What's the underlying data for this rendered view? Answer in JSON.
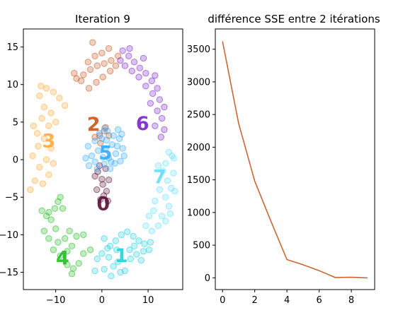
{
  "chart_data": [
    {
      "type": "scatter",
      "title": "Iteration 9",
      "xlabel": "",
      "ylabel": "",
      "xlim": [
        -17,
        17.5
      ],
      "ylim": [
        -17.3,
        17.4
      ],
      "xticks": [
        "−10",
        "0",
        "10"
      ],
      "xtick_values": [
        -10,
        0,
        10
      ],
      "yticks": [
        "−15",
        "−10",
        "−5",
        "0",
        "5",
        "10",
        "15"
      ],
      "ytick_values": [
        -15,
        -10,
        -5,
        0,
        5,
        10,
        15
      ],
      "grid": false,
      "clusters": [
        {
          "label": "0",
          "color": "#5a1033",
          "label_pos": [
            0.3,
            -5.8
          ],
          "points": [
            [
              -0.5,
              -0.8
            ],
            [
              0.8,
              -1.2
            ],
            [
              -1.5,
              -2.2
            ],
            [
              1.5,
              -2.7
            ],
            [
              0.2,
              -3.3
            ],
            [
              -1.1,
              -4.0
            ],
            [
              1.0,
              -4.2
            ],
            [
              0.4,
              -4.8
            ],
            [
              -0.3,
              -5.3
            ],
            [
              1.3,
              -5.5
            ],
            [
              -0.9,
              -1.6
            ],
            [
              0.0,
              -2.6
            ]
          ]
        },
        {
          "label": "1",
          "color": "#22d0dd",
          "label_pos": [
            4.2,
            -12.7
          ],
          "points": [
            [
              0.5,
              -10.5
            ],
            [
              1.8,
              -11.5
            ],
            [
              3.0,
              -10.8
            ],
            [
              4.2,
              -10.0
            ],
            [
              5.5,
              -9.6
            ],
            [
              6.8,
              -10.2
            ],
            [
              8.0,
              -10.8
            ],
            [
              9.2,
              -11.2
            ],
            [
              10.5,
              -11.0
            ],
            [
              -1.0,
              -13.2
            ],
            [
              0.0,
              -12.5
            ],
            [
              1.5,
              -13.0
            ],
            [
              2.5,
              -14.2
            ],
            [
              3.5,
              -13.6
            ],
            [
              5.0,
              -14.8
            ],
            [
              6.2,
              -13.2
            ],
            [
              7.5,
              -12.6
            ],
            [
              8.5,
              -13.4
            ],
            [
              -1.5,
              -14.8
            ],
            [
              0.5,
              -14.6
            ],
            [
              2.0,
              -15.5
            ],
            [
              4.0,
              -15.0
            ],
            [
              6.0,
              -12.0
            ],
            [
              7.0,
              -11.5
            ],
            [
              9.0,
              -12.2
            ],
            [
              10.2,
              -12.0
            ],
            [
              3.2,
              -12.0
            ],
            [
              1.2,
              -11.8
            ]
          ]
        },
        {
          "label": "2",
          "color": "#c9541b",
          "label_pos": [
            -1.8,
            4.8
          ],
          "points": [
            [
              -5.5,
              10.8
            ],
            [
              -4.0,
              11.3
            ],
            [
              -2.5,
              12.0
            ],
            [
              -1.0,
              12.5
            ],
            [
              0.5,
              12.8
            ],
            [
              2.0,
              13.2
            ],
            [
              3.5,
              13.8
            ],
            [
              -3.0,
              13.0
            ],
            [
              -1.5,
              13.8
            ],
            [
              0.0,
              14.2
            ],
            [
              1.5,
              14.8
            ],
            [
              -2.0,
              15.6
            ],
            [
              -6.0,
              11.5
            ],
            [
              -4.5,
              10.5
            ],
            [
              -2.8,
              9.5
            ],
            [
              -1.2,
              10.3
            ],
            [
              0.2,
              11.0
            ],
            [
              1.8,
              11.8
            ],
            [
              3.0,
              12.5
            ],
            [
              -0.5,
              3.2
            ],
            [
              0.5,
              3.8
            ],
            [
              -1.5,
              3.0
            ],
            [
              0.8,
              4.3
            ],
            [
              1.5,
              3.2
            ],
            [
              -0.3,
              2.2
            ]
          ]
        },
        {
          "label": "3",
          "color": "#ffaa33",
          "label_pos": [
            -11.5,
            2.6
          ],
          "points": [
            [
              -13.5,
              8.5
            ],
            [
              -12.0,
              9.5
            ],
            [
              -10.5,
              9.0
            ],
            [
              -9.2,
              8.2
            ],
            [
              -8.0,
              7.2
            ],
            [
              -12.5,
              7.0
            ],
            [
              -11.0,
              6.2
            ],
            [
              -10.0,
              5.0
            ],
            [
              -13.0,
              5.5
            ],
            [
              -11.5,
              4.5
            ],
            [
              -14.0,
              3.5
            ],
            [
              -12.5,
              2.8
            ],
            [
              -11.0,
              1.5
            ],
            [
              -13.8,
              1.8
            ],
            [
              -15.0,
              0.5
            ],
            [
              -12.0,
              0.0
            ],
            [
              -10.5,
              -0.5
            ],
            [
              -13.5,
              -1.0
            ],
            [
              -11.5,
              -2.0
            ],
            [
              -14.5,
              -2.8
            ],
            [
              -12.8,
              -3.2
            ],
            [
              -15.5,
              -4.0
            ],
            [
              -14.8,
              4.5
            ],
            [
              -13.2,
              9.8
            ]
          ]
        },
        {
          "label": "4",
          "color": "#22bb22",
          "label_pos": [
            -8.5,
            -13.0
          ],
          "points": [
            [
              -13.0,
              -6.8
            ],
            [
              -12.0,
              -7.5
            ],
            [
              -11.0,
              -8.0
            ],
            [
              -10.2,
              -6.5
            ],
            [
              -9.5,
              -5.6
            ],
            [
              -8.5,
              -6.5
            ],
            [
              -12.5,
              -9.5
            ],
            [
              -11.5,
              -10.5
            ],
            [
              -10.0,
              -9.2
            ],
            [
              -9.5,
              -11.0
            ],
            [
              -8.0,
              -10.5
            ],
            [
              -7.0,
              -9.5
            ],
            [
              -10.5,
              -12.0
            ],
            [
              -9.0,
              -12.8
            ],
            [
              -7.5,
              -12.2
            ],
            [
              -6.5,
              -11.5
            ],
            [
              -5.5,
              -10.2
            ],
            [
              -4.0,
              -10.0
            ],
            [
              -7.5,
              -14.0
            ],
            [
              -6.2,
              -14.5
            ],
            [
              -5.0,
              -13.8
            ],
            [
              -4.0,
              -12.5
            ],
            [
              -2.5,
              -12.0
            ],
            [
              -6.5,
              -15.2
            ],
            [
              -11.5,
              -7.0
            ],
            [
              -9.0,
              -5.0
            ]
          ]
        },
        {
          "label": "5",
          "color": "#33aaff",
          "label_pos": [
            0.8,
            1.0
          ],
          "points": [
            [
              -3.0,
              1.8
            ],
            [
              -2.2,
              0.5
            ],
            [
              -1.5,
              2.5
            ],
            [
              -0.8,
              1.2
            ],
            [
              0.0,
              2.8
            ],
            [
              0.8,
              1.5
            ],
            [
              1.5,
              0.2
            ],
            [
              2.2,
              2.0
            ],
            [
              3.0,
              0.8
            ],
            [
              3.8,
              2.8
            ],
            [
              4.5,
              1.5
            ],
            [
              -2.8,
              -0.8
            ],
            [
              -1.5,
              -0.3
            ],
            [
              0.5,
              -0.6
            ],
            [
              1.8,
              -1.2
            ],
            [
              2.8,
              -0.5
            ],
            [
              4.0,
              -0.2
            ],
            [
              4.8,
              0.5
            ],
            [
              -0.5,
              3.5
            ],
            [
              1.2,
              3.8
            ],
            [
              2.5,
              3.2
            ],
            [
              3.5,
              4.0
            ],
            [
              -3.5,
              0.2
            ],
            [
              0.2,
              0.3
            ],
            [
              1.0,
              2.6
            ],
            [
              2.0,
              -0.3
            ],
            [
              3.3,
              1.8
            ],
            [
              4.3,
              3.4
            ],
            [
              -1.0,
              -1.2
            ],
            [
              0.6,
              4.2
            ]
          ]
        },
        {
          "label": "6",
          "color": "#7a22cc",
          "label_pos": [
            8.8,
            4.9
          ],
          "points": [
            [
              4.5,
              14.5
            ],
            [
              5.8,
              13.8
            ],
            [
              7.0,
              13.0
            ],
            [
              8.2,
              12.2
            ],
            [
              9.5,
              11.5
            ],
            [
              10.8,
              10.5
            ],
            [
              12.0,
              9.5
            ],
            [
              5.0,
              12.5
            ],
            [
              6.5,
              11.8
            ],
            [
              8.0,
              11.0
            ],
            [
              9.5,
              9.8
            ],
            [
              11.0,
              8.8
            ],
            [
              12.5,
              8.0
            ],
            [
              13.5,
              7.0
            ],
            [
              10.5,
              7.5
            ],
            [
              12.0,
              6.5
            ],
            [
              13.0,
              5.5
            ],
            [
              11.5,
              4.5
            ],
            [
              13.5,
              4.0
            ],
            [
              12.8,
              3.0
            ],
            [
              6.0,
              14.8
            ],
            [
              4.0,
              13.2
            ],
            [
              9.0,
              13.5
            ],
            [
              11.5,
              11.2
            ]
          ]
        },
        {
          "label": "7",
          "color": "#66ddff",
          "label_pos": [
            12.5,
            -2.2
          ],
          "points": [
            [
              14.5,
              1.0
            ],
            [
              15.2,
              0.5
            ],
            [
              13.8,
              -0.5
            ],
            [
              15.5,
              -1.8
            ],
            [
              14.2,
              -2.8
            ],
            [
              13.2,
              -1.5
            ],
            [
              12.2,
              -0.8
            ],
            [
              15.0,
              -3.8
            ],
            [
              13.8,
              -5.0
            ],
            [
              15.8,
              -4.2
            ],
            [
              12.5,
              -4.0
            ],
            [
              11.5,
              -5.5
            ],
            [
              14.5,
              -6.2
            ],
            [
              13.0,
              -7.5
            ],
            [
              11.2,
              -6.8
            ],
            [
              10.2,
              -7.5
            ],
            [
              12.2,
              -8.8
            ],
            [
              13.8,
              -8.2
            ],
            [
              10.8,
              -9.5
            ],
            [
              9.5,
              -8.8
            ],
            [
              14.8,
              -7.2
            ],
            [
              15.6,
              0.2
            ]
          ]
        }
      ]
    },
    {
      "type": "line",
      "title": "différence SSE entre 2 itérations",
      "xlabel": "",
      "ylabel": "",
      "xlim": [
        -0.45,
        9.45
      ],
      "ylim": [
        -180,
        3810
      ],
      "xticks": [
        "0",
        "2",
        "4",
        "6",
        "8"
      ],
      "xtick_values": [
        0,
        2,
        4,
        6,
        8
      ],
      "yticks": [
        "0",
        "500",
        "1000",
        "1500",
        "2000",
        "2500",
        "3000",
        "3500"
      ],
      "ytick_values": [
        0,
        500,
        1000,
        1500,
        2000,
        2500,
        3000,
        3500
      ],
      "grid": false,
      "series": [
        {
          "color": "#cc6633",
          "x": [
            0,
            1,
            2,
            3,
            4,
            5,
            6,
            7,
            8,
            9
          ],
          "values": [
            3620,
            2360,
            1480,
            870,
            280,
            200,
            110,
            5,
            8,
            0
          ]
        }
      ]
    }
  ]
}
